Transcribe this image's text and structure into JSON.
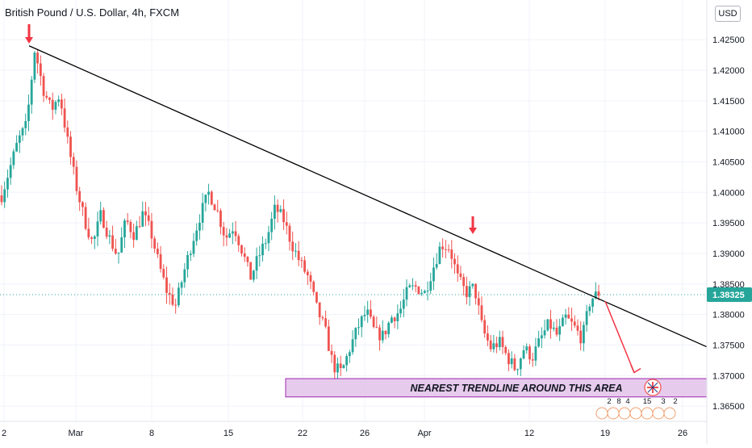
{
  "header": {
    "symbol_title": "British Pound / U.S. Dollar, 4h, FXCM",
    "currency_button": "USD"
  },
  "colors": {
    "up": "#26a69a",
    "down": "#ef5350",
    "trendline": "#000000",
    "price_line": "#26a69a",
    "annotation_box_fill": "#e1bee7",
    "annotation_box_border": "#9c27b0",
    "arrow": "#f23645"
  },
  "chart_data": {
    "type": "candlestick",
    "title": "British Pound / U.S. Dollar, 4h, FXCM",
    "x_tick_labels": [
      "2",
      "Mar",
      "8",
      "15",
      "22",
      "26",
      "Apr",
      "12",
      "19",
      "26"
    ],
    "y_tick_labels": [
      "1.42500",
      "1.42000",
      "1.41500",
      "1.41000",
      "1.40500",
      "1.40000",
      "1.39500",
      "1.39000",
      "1.38500",
      "1.38000",
      "1.37500",
      "1.37000",
      "1.36500"
    ],
    "ylim": [
      1.3625,
      1.4315
    ],
    "grid": true,
    "current_price": 1.38325,
    "current_price_label": "1.38325",
    "price_path": [
      1.3995,
      1.404,
      1.4085,
      1.411,
      1.4235,
      1.417,
      1.4135,
      1.416,
      1.408,
      1.401,
      1.3955,
      1.3915,
      1.3965,
      1.3925,
      1.3895,
      1.3955,
      1.393,
      1.3965,
      1.3935,
      1.388,
      1.3835,
      1.3815,
      1.387,
      1.392,
      1.3965,
      1.4,
      1.397,
      1.3925,
      1.3945,
      1.3905,
      1.386,
      1.3895,
      1.3925,
      1.3975,
      1.3955,
      1.3915,
      1.3885,
      1.386,
      1.381,
      1.3775,
      1.3715,
      1.3705,
      1.3745,
      1.378,
      1.3805,
      1.377,
      1.3765,
      1.3795,
      1.3805,
      1.384,
      1.3845,
      1.3835,
      1.3875,
      1.3915,
      1.391,
      1.386,
      1.3835,
      1.3845,
      1.3775,
      1.3745,
      1.3755,
      1.373,
      1.371,
      1.3745,
      1.373,
      1.376,
      1.3785,
      1.3765,
      1.3795,
      1.378,
      1.376,
      1.3825,
      1.3835
    ],
    "trendline": {
      "from": {
        "x": "Feb 25",
        "y": 1.4235
      },
      "to": {
        "x": "Apr 27",
        "y": 1.3755
      }
    },
    "annotations": {
      "zone_label": "NEAREST TRENDLINE AROUND THIS AREA",
      "zone_range": [
        1.3665,
        1.3695
      ]
    },
    "event_markers": [
      {
        "label": "2"
      },
      {
        "label": "8"
      },
      {
        "label": "4"
      },
      {
        "label": "15"
      },
      {
        "label": "3"
      },
      {
        "label": "2"
      }
    ]
  }
}
